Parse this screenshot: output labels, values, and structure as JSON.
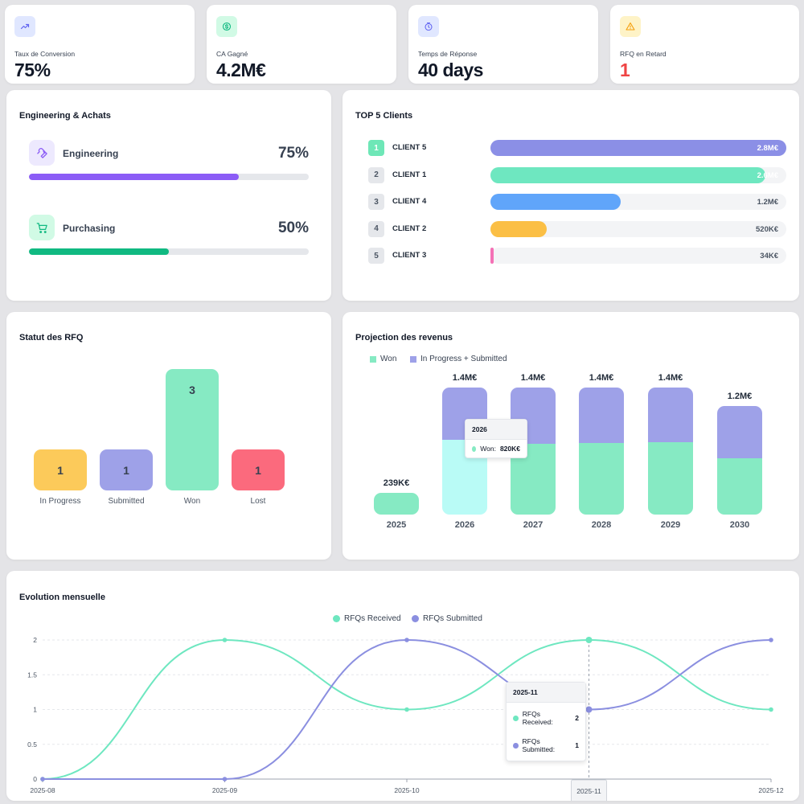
{
  "kpis": [
    {
      "label": "Taux de Conversion",
      "value": "75%",
      "icon": "trend-up-icon",
      "accent": "#6366f1",
      "bg": "#e0e7ff",
      "value_color": "#111827"
    },
    {
      "label": "CA Gagné",
      "value": "4.2M€",
      "icon": "dollar-icon",
      "accent": "#10b981",
      "bg": "#d1fae5",
      "value_color": "#111827"
    },
    {
      "label": "Temps de Réponse",
      "value": "40 days",
      "icon": "clock-icon",
      "accent": "#6366f1",
      "bg": "#e0e7ff",
      "value_color": "#111827"
    },
    {
      "label": "RFQ en Retard",
      "value": "1",
      "icon": "warning-icon",
      "accent": "#f59e0b",
      "bg": "#fef3c7",
      "value_color": "#ef4444"
    }
  ],
  "engineering": {
    "title": "Engineering & Achats",
    "rows": [
      {
        "name": "Engineering",
        "percent_label": "75%",
        "fraction": 0.75,
        "color": "#8b5cf6",
        "icon": "wrench-icon"
      },
      {
        "name": "Purchasing",
        "percent_label": "50%",
        "fraction": 0.5,
        "color": "#10b981",
        "icon": "cart-icon"
      }
    ]
  },
  "top_clients": {
    "title": "TOP 5 Clients",
    "items": [
      {
        "rank": "1",
        "name": "CLIENT 5",
        "amount": "2.8M€",
        "fraction": 1.0,
        "color": "#8b8fe6",
        "highlight": true
      },
      {
        "rank": "2",
        "name": "CLIENT 1",
        "amount": "2.6M€",
        "fraction": 0.93,
        "color": "#6ee7c0",
        "highlight": false
      },
      {
        "rank": "3",
        "name": "CLIENT 4",
        "amount": "1.2M€",
        "fraction": 0.44,
        "color": "#60a5fa",
        "highlight": false
      },
      {
        "rank": "4",
        "name": "CLIENT 2",
        "amount": "520K€",
        "fraction": 0.19,
        "color": "#fbbf45",
        "highlight": false
      },
      {
        "rank": "5",
        "name": "CLIENT 3",
        "amount": "34K€",
        "fraction": 0.012,
        "color": "#f472b6",
        "highlight": false
      }
    ]
  },
  "rfq_status": {
    "title": "Statut des RFQ",
    "items": [
      {
        "label": "In Progress",
        "value": "1",
        "color": "#fcca5a"
      },
      {
        "label": "Submitted",
        "value": "1",
        "color": "#9ea1e8"
      },
      {
        "label": "Won",
        "value": "3",
        "color": "#86eac3"
      },
      {
        "label": "Lost",
        "value": "1",
        "color": "#fb6a7d"
      }
    ]
  },
  "projection": {
    "title": "Projection des revenus",
    "legend": [
      {
        "label": "Won",
        "color": "#86eac3"
      },
      {
        "label": "In Progress + Submitted",
        "color": "#9ea1e8"
      }
    ],
    "tooltip": {
      "title": "2026",
      "label": "Won:",
      "value": "820K€"
    }
  },
  "monthly": {
    "title": "Evolution mensuelle",
    "legend": [
      {
        "label": "RFQs Received",
        "color": "#6ee7c0"
      },
      {
        "label": "RFQs Submitted",
        "color": "#8b8fe0"
      }
    ],
    "tooltip": {
      "title": "2025-11",
      "received_label": "RFQs Received:",
      "received_value": "2",
      "submitted_label": "RFQs Submitted:",
      "submitted_value": "1"
    }
  },
  "chart_data": [
    {
      "type": "bar",
      "title": "Statut des RFQ",
      "categories": [
        "In Progress",
        "Submitted",
        "Won",
        "Lost"
      ],
      "values": [
        1,
        1,
        3,
        1
      ]
    },
    {
      "type": "bar",
      "title": "Projection des revenus",
      "categories": [
        "2025",
        "2026",
        "2027",
        "2028",
        "2029",
        "2030"
      ],
      "series": [
        {
          "name": "Won",
          "values": [
            239,
            820,
            780,
            790,
            800,
            620
          ]
        },
        {
          "name": "In Progress + Submitted",
          "values": [
            0,
            580,
            620,
            610,
            600,
            580
          ]
        }
      ],
      "totals": [
        "239K€",
        "1.4M€",
        "1.4M€",
        "1.4M€",
        "1.4M€",
        "1.2M€"
      ],
      "unit": "K€",
      "ylim": [
        0,
        1400
      ]
    },
    {
      "type": "line",
      "title": "Evolution mensuelle",
      "x": [
        "2025-08",
        "2025-09",
        "2025-10",
        "2025-11",
        "2025-12"
      ],
      "series": [
        {
          "name": "RFQs Received",
          "values": [
            0,
            2,
            1,
            2,
            1
          ]
        },
        {
          "name": "RFQs Submitted",
          "values": [
            0,
            0,
            2,
            1,
            2
          ]
        }
      ],
      "yticks": [
        "0",
        "0.5",
        "1",
        "1.5",
        "2"
      ],
      "ylim": [
        0,
        2
      ],
      "highlight_x": "2025-11"
    }
  ]
}
